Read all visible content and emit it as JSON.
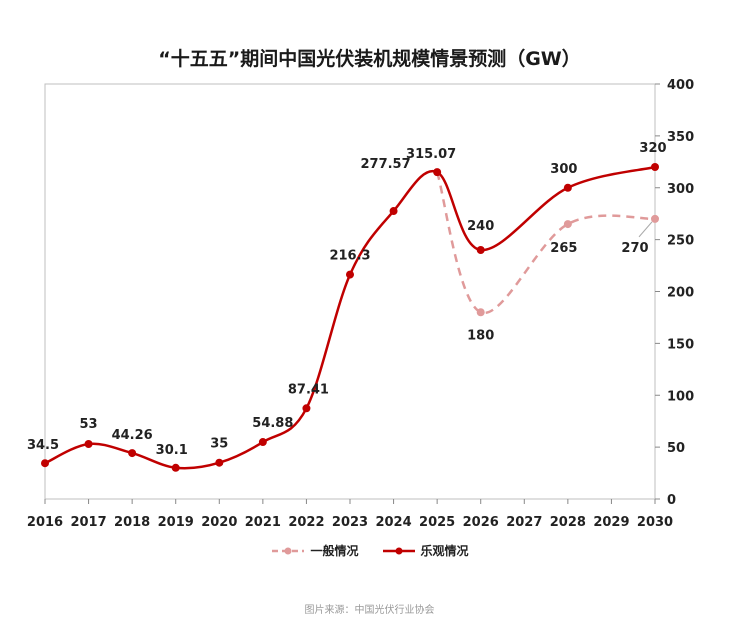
{
  "title": "“十五五”期间中国光伏装机规模情景预测（GW）",
  "source": "图片来源：中国光伏行业协会",
  "chart_data": {
    "type": "line",
    "title": "“十五五”期间中国光伏装机规模情景预测（GW）",
    "xlabel": "",
    "ylabel": "",
    "ylim": [
      0,
      400
    ],
    "yticks": [
      "0",
      "50",
      "100",
      "150",
      "200",
      "250",
      "300",
      "350",
      "400"
    ],
    "y_axis_side": "right",
    "categories": [
      "2016",
      "2017",
      "2018",
      "2019",
      "2020",
      "2021",
      "2022",
      "2023",
      "2024",
      "2025",
      "2026",
      "2027",
      "2028",
      "2029",
      "2030"
    ],
    "series": [
      {
        "name": "乐观情况",
        "color": "#c00000",
        "style": "solid",
        "points": [
          {
            "x": "2016",
            "y": 34.5,
            "label": "34.5"
          },
          {
            "x": "2017",
            "y": 53,
            "label": "53"
          },
          {
            "x": "2018",
            "y": 44.26,
            "label": "44.26"
          },
          {
            "x": "2019",
            "y": 30.1,
            "label": "30.1"
          },
          {
            "x": "2020",
            "y": 35,
            "label": "35"
          },
          {
            "x": "2021",
            "y": 54.88,
            "label": "54.88"
          },
          {
            "x": "2022",
            "y": 87.41,
            "label": "87.41"
          },
          {
            "x": "2023",
            "y": 216.3,
            "label": "216.3"
          },
          {
            "x": "2024",
            "y": 277.57,
            "label": "277.57"
          },
          {
            "x": "2025",
            "y": 315.07,
            "label": "315.07"
          },
          {
            "x": "2026",
            "y": 240,
            "label": "240"
          },
          {
            "x": "2028",
            "y": 300,
            "label": "300"
          },
          {
            "x": "2030",
            "y": 320,
            "label": "320"
          }
        ]
      },
      {
        "name": "一般情况",
        "color": "#e09a9a",
        "style": "dashed",
        "points": [
          {
            "x": "2025",
            "y": 315.07,
            "label": ""
          },
          {
            "x": "2026",
            "y": 180,
            "label": "180"
          },
          {
            "x": "2028",
            "y": 265,
            "label": "265"
          },
          {
            "x": "2030",
            "y": 270,
            "label": "270"
          }
        ]
      }
    ],
    "legend": [
      {
        "name": "一般情况",
        "color": "#e09a9a",
        "style": "dashed"
      },
      {
        "name": "乐观情况",
        "color": "#c00000",
        "style": "solid"
      }
    ],
    "legend_position": "bottom"
  }
}
